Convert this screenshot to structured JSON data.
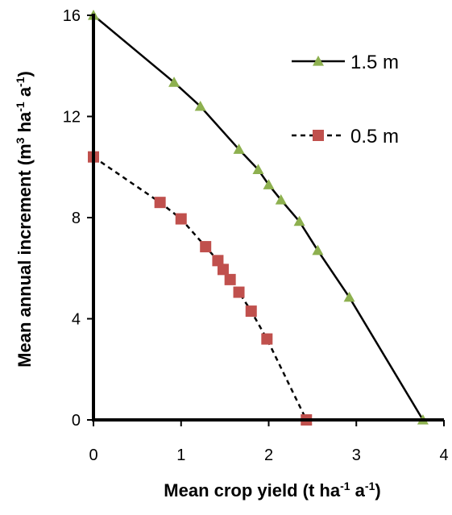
{
  "chart_data": {
    "type": "line",
    "xlabel": "Mean crop yield (t ha",
    "xlabel_sup1": "-1",
    "xlabel_mid": " a",
    "xlabel_sup2": "-1",
    "xlabel_end": ")",
    "ylabel": "Mean annual increment (m",
    "ylabel_sup1": "3",
    "ylabel_mid1": " ha",
    "ylabel_sup2": "-1",
    "ylabel_mid2": " a",
    "ylabel_sup3": "-1",
    "ylabel_end": ")",
    "xlim": [
      0,
      4
    ],
    "ylim": [
      0,
      16
    ],
    "xticks": [
      "0",
      "1",
      "2",
      "3",
      "4"
    ],
    "yticks": [
      "0",
      "4",
      "8",
      "12",
      "16"
    ],
    "grid": false,
    "legend_position": "top-right",
    "series": [
      {
        "name": "1.5 m",
        "marker": "triangle",
        "line": "solid",
        "marker_color": "#8DB04F",
        "line_color": "#000000",
        "points": [
          {
            "x": 0.0,
            "y": 16.0
          },
          {
            "x": 0.92,
            "y": 13.35
          },
          {
            "x": 1.22,
            "y": 12.4
          },
          {
            "x": 1.66,
            "y": 10.7
          },
          {
            "x": 1.88,
            "y": 9.9
          },
          {
            "x": 2.0,
            "y": 9.3
          },
          {
            "x": 2.14,
            "y": 8.7
          },
          {
            "x": 2.35,
            "y": 7.85
          },
          {
            "x": 2.56,
            "y": 6.7
          },
          {
            "x": 2.92,
            "y": 4.85
          },
          {
            "x": 3.76,
            "y": 0.0
          }
        ]
      },
      {
        "name": "0.5 m",
        "marker": "square",
        "line": "dashed",
        "marker_color": "#C0504D",
        "line_color": "#000000",
        "points": [
          {
            "x": 0.0,
            "y": 10.4
          },
          {
            "x": 0.76,
            "y": 8.6
          },
          {
            "x": 1.0,
            "y": 7.95
          },
          {
            "x": 1.28,
            "y": 6.85
          },
          {
            "x": 1.42,
            "y": 6.3
          },
          {
            "x": 1.48,
            "y": 5.95
          },
          {
            "x": 1.56,
            "y": 5.55
          },
          {
            "x": 1.66,
            "y": 5.05
          },
          {
            "x": 1.8,
            "y": 4.3
          },
          {
            "x": 1.98,
            "y": 3.2
          },
          {
            "x": 2.43,
            "y": 0.0
          }
        ]
      }
    ]
  }
}
